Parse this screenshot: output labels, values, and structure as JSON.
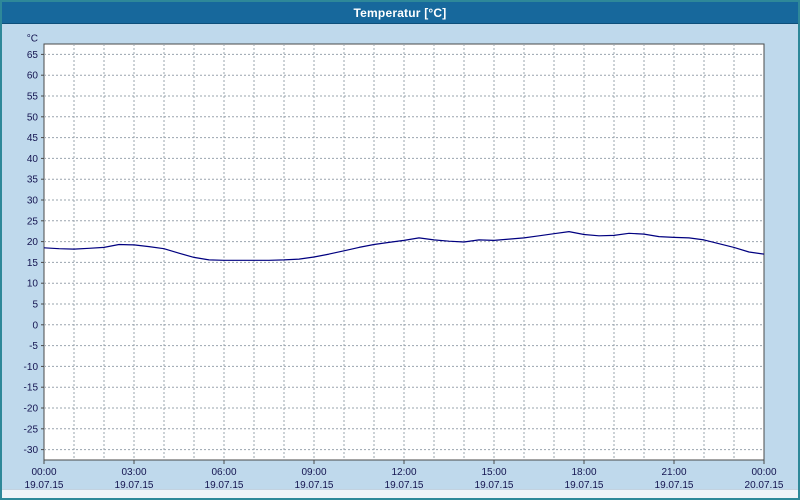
{
  "window": {
    "title": "Temperatur [°C]"
  },
  "colors": {
    "titlebar_bg": "#17689c",
    "window_bg": "#bfd9ec",
    "window_border": "#2e8899",
    "plot_bg": "#ffffff",
    "plot_border": "#4a4a4a",
    "grid": "#9aa4ae",
    "tick_label": "#141450",
    "line": "#000080"
  },
  "chart_data": {
    "type": "line",
    "title": "Temperatur [°C]",
    "y_unit_label": "°C",
    "xlabel": "",
    "ylabel": "°C",
    "xlim": [
      0,
      24
    ],
    "ylim": [
      -32.5,
      67.5
    ],
    "grid": true,
    "legend": "none",
    "y_ticks": [
      65,
      60,
      55,
      50,
      45,
      40,
      35,
      30,
      25,
      20,
      15,
      10,
      5,
      0,
      -5,
      -10,
      -15,
      -20,
      -25,
      -30
    ],
    "x_minor_step_hours": 1,
    "x_ticks": [
      {
        "hour": 0,
        "time": "00:00",
        "date": "19.07.15"
      },
      {
        "hour": 3,
        "time": "03:00",
        "date": "19.07.15"
      },
      {
        "hour": 6,
        "time": "06:00",
        "date": "19.07.15"
      },
      {
        "hour": 9,
        "time": "09:00",
        "date": "19.07.15"
      },
      {
        "hour": 12,
        "time": "12:00",
        "date": "19.07.15"
      },
      {
        "hour": 15,
        "time": "15:00",
        "date": "19.07.15"
      },
      {
        "hour": 18,
        "time": "18:00",
        "date": "19.07.15"
      },
      {
        "hour": 21,
        "time": "21:00",
        "date": "19.07.15"
      },
      {
        "hour": 24,
        "time": "00:00",
        "date": "20.07.15"
      }
    ],
    "series": [
      {
        "name": "Temperatur",
        "color": "#000080",
        "x": [
          0,
          0.5,
          1,
          1.5,
          2,
          2.5,
          3,
          3.5,
          4,
          4.5,
          5,
          5.5,
          6,
          6.5,
          7,
          7.5,
          8,
          8.5,
          9,
          9.5,
          10,
          10.5,
          11,
          11.5,
          12,
          12.5,
          13,
          13.5,
          14,
          14.5,
          15,
          15.5,
          16,
          16.5,
          17,
          17.5,
          18,
          18.5,
          19,
          19.5,
          20,
          20.5,
          21,
          21.5,
          22,
          22.5,
          23,
          23.5,
          24
        ],
        "y": [
          18.5,
          18.3,
          18.2,
          18.4,
          18.6,
          19.3,
          19.2,
          18.8,
          18.3,
          17.2,
          16.2,
          15.6,
          15.5,
          15.5,
          15.5,
          15.5,
          15.6,
          15.8,
          16.3,
          17.0,
          17.8,
          18.6,
          19.3,
          19.8,
          20.3,
          20.9,
          20.4,
          20.1,
          19.9,
          20.4,
          20.3,
          20.6,
          20.9,
          21.4,
          21.9,
          22.4,
          21.7,
          21.4,
          21.5,
          22.0,
          21.8,
          21.2,
          21.0,
          20.9,
          20.4,
          19.5,
          18.6,
          17.5,
          17.0
        ]
      }
    ]
  }
}
